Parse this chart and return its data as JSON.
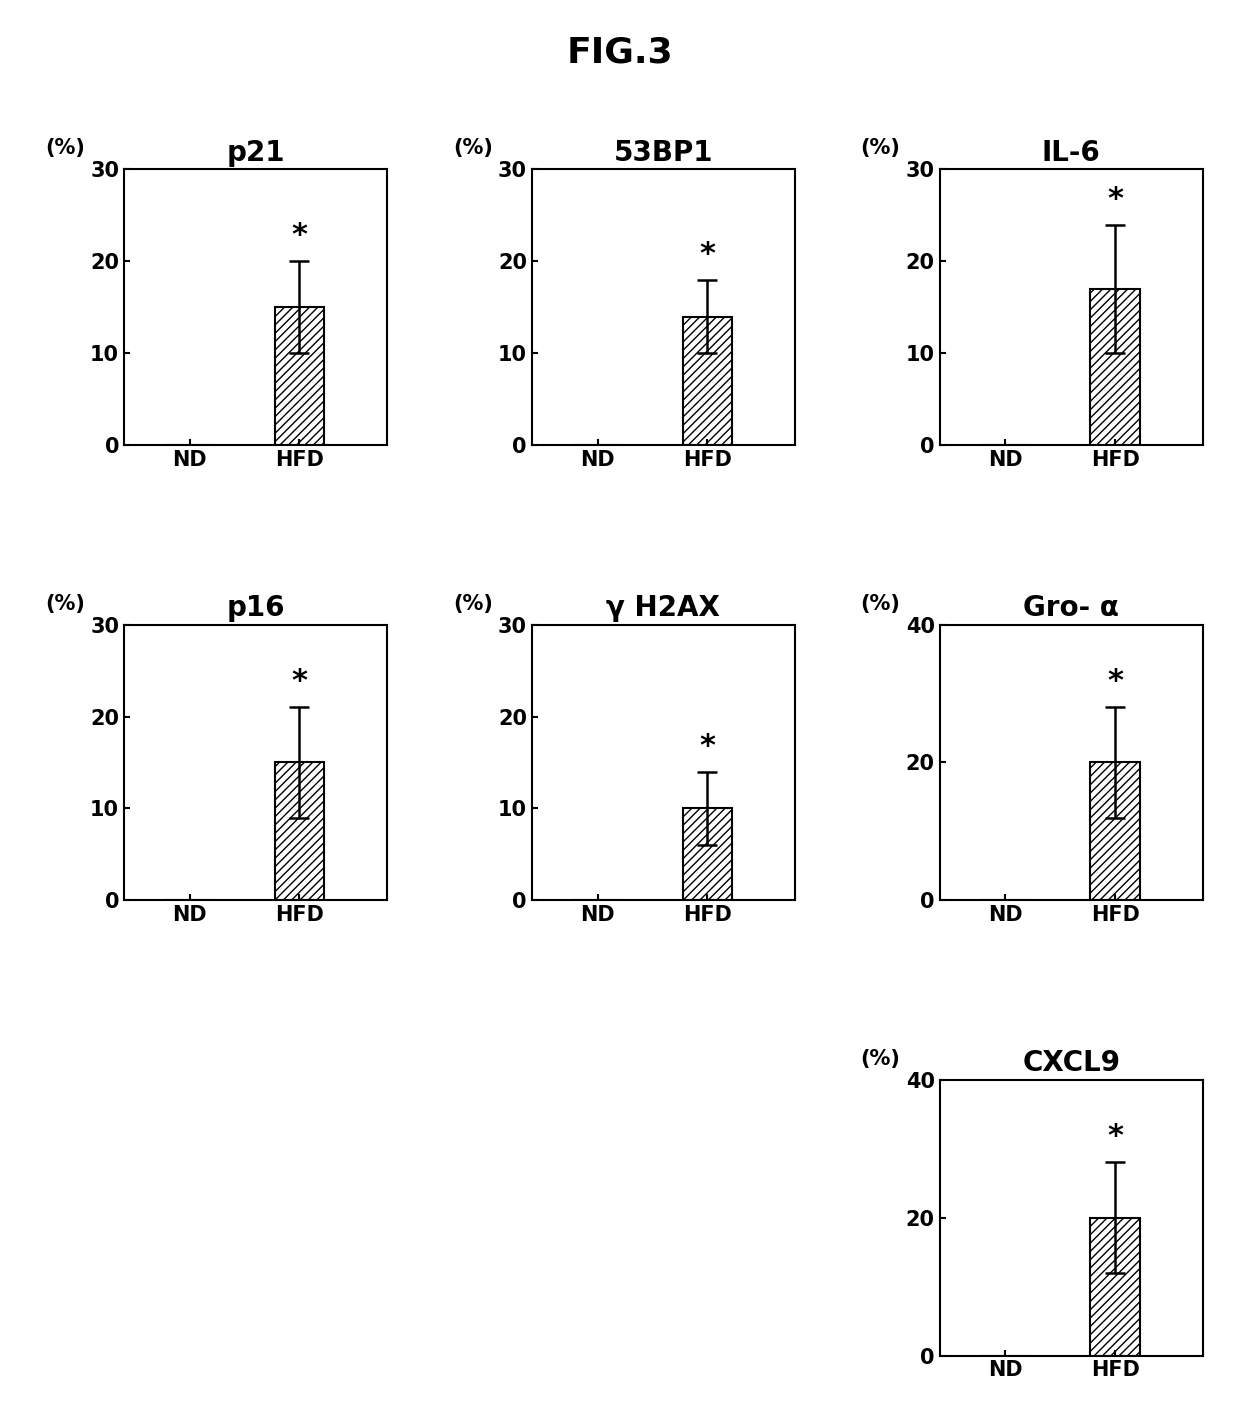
{
  "figure_title": "FIG.3",
  "subplots": [
    {
      "title": "p21",
      "ylabel": "(%)",
      "ylim": [
        0,
        30
      ],
      "yticks": [
        0,
        10,
        20,
        30
      ],
      "categories": [
        "ND",
        "HFD"
      ],
      "values": [
        0,
        15
      ],
      "errors": [
        0,
        5
      ],
      "row": 0,
      "col": 0
    },
    {
      "title": "53BP1",
      "ylabel": "(%)",
      "ylim": [
        0,
        30
      ],
      "yticks": [
        0,
        10,
        20,
        30
      ],
      "categories": [
        "ND",
        "HFD"
      ],
      "values": [
        0,
        14
      ],
      "errors": [
        0,
        4
      ],
      "row": 0,
      "col": 1
    },
    {
      "title": "IL-6",
      "ylabel": "(%)",
      "ylim": [
        0,
        30
      ],
      "yticks": [
        0,
        10,
        20,
        30
      ],
      "categories": [
        "ND",
        "HFD"
      ],
      "values": [
        0,
        17
      ],
      "errors": [
        0,
        7
      ],
      "row": 0,
      "col": 2
    },
    {
      "title": "p16",
      "ylabel": "(%)",
      "ylim": [
        0,
        30
      ],
      "yticks": [
        0,
        10,
        20,
        30
      ],
      "categories": [
        "ND",
        "HFD"
      ],
      "values": [
        0,
        15
      ],
      "errors": [
        0,
        6
      ],
      "row": 1,
      "col": 0
    },
    {
      "title": "γ H2AX",
      "ylabel": "(%)",
      "ylim": [
        0,
        30
      ],
      "yticks": [
        0,
        10,
        20,
        30
      ],
      "categories": [
        "ND",
        "HFD"
      ],
      "values": [
        0,
        10
      ],
      "errors": [
        0,
        4
      ],
      "row": 1,
      "col": 1
    },
    {
      "title": "Gro- α",
      "ylabel": "(%)",
      "ylim": [
        0,
        40
      ],
      "yticks": [
        0,
        20,
        40
      ],
      "categories": [
        "ND",
        "HFD"
      ],
      "values": [
        0,
        20
      ],
      "errors": [
        0,
        8
      ],
      "row": 1,
      "col": 2
    },
    {
      "title": "CXCL9",
      "ylabel": "(%)",
      "ylim": [
        0,
        40
      ],
      "yticks": [
        0,
        20,
        40
      ],
      "categories": [
        "ND",
        "HFD"
      ],
      "values": [
        0,
        20
      ],
      "errors": [
        0,
        8
      ],
      "row": 2,
      "col": 2
    }
  ],
  "bar_color": "#ffffff",
  "hatch_pattern": "////",
  "edge_color": "#000000",
  "background_color": "#ffffff",
  "title_fontsize": 20,
  "axis_label_fontsize": 15,
  "tick_fontsize": 15,
  "figure_title_fontsize": 26
}
